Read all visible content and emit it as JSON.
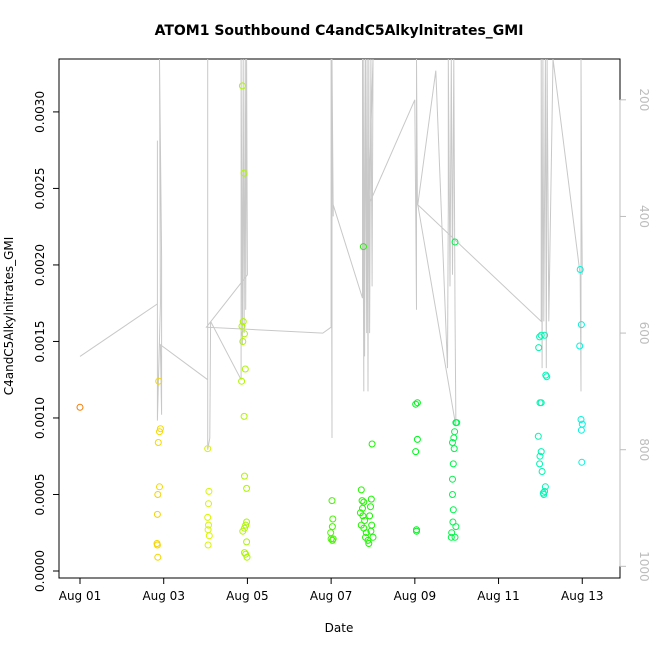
{
  "chart_data": {
    "type": "scatter",
    "title": "ATOM1 Southbound C4andC5Alkylnitrates_GMI",
    "xlabel": "Date",
    "ylabel": "C4andC5Alkylnitrates_GMI",
    "x_tick_labels": [
      "Aug 01",
      "Aug 03",
      "Aug 05",
      "Aug 07",
      "Aug 09",
      "Aug 11",
      "Aug 13"
    ],
    "y_tick_labels": [
      "0.0000",
      "0.0005",
      "0.0010",
      "0.0015",
      "0.0020",
      "0.0025",
      "0.0030"
    ],
    "y_ticks": [
      0,
      0.0005,
      0.001,
      0.0015,
      0.002,
      0.0025,
      0.003
    ],
    "ylim": [
      0,
      0.0033
    ],
    "xlim_days": [
      0,
      12.4
    ],
    "y2_tick_labels": [
      "200",
      "400",
      "600",
      "800",
      "1000"
    ],
    "y2_ticks": [
      200,
      400,
      600,
      800,
      1000
    ],
    "y2lim": [
      1020,
      130
    ],
    "y2_reversed": true,
    "series_points": [
      [
        0.0,
        0.00107
      ],
      [
        1.88,
        0.00124
      ],
      [
        1.92,
        0.00093
      ],
      [
        1.9,
        0.00091
      ],
      [
        1.87,
        0.00084
      ],
      [
        1.9,
        0.00055
      ],
      [
        1.86,
        0.0005
      ],
      [
        1.85,
        0.00037
      ],
      [
        1.84,
        0.00018
      ],
      [
        1.85,
        0.00017
      ],
      [
        1.86,
        9e-05
      ],
      [
        3.05,
        0.0008
      ],
      [
        3.08,
        0.00052
      ],
      [
        3.07,
        0.00044
      ],
      [
        3.05,
        0.00035
      ],
      [
        3.07,
        0.0003
      ],
      [
        3.06,
        0.00027
      ],
      [
        3.09,
        0.00023
      ],
      [
        3.06,
        0.00017
      ],
      [
        3.88,
        0.00317
      ],
      [
        3.92,
        0.0026
      ],
      [
        3.87,
        0.0016
      ],
      [
        3.9,
        0.00163
      ],
      [
        3.93,
        0.00155
      ],
      [
        3.89,
        0.0015
      ],
      [
        3.95,
        0.00132
      ],
      [
        3.86,
        0.00124
      ],
      [
        3.92,
        0.00101
      ],
      [
        3.93,
        0.00062
      ],
      [
        3.98,
        0.00054
      ],
      [
        3.98,
        0.00032
      ],
      [
        3.96,
        0.0003
      ],
      [
        3.93,
        0.00028
      ],
      [
        3.89,
        0.00026
      ],
      [
        3.98,
        0.00019
      ],
      [
        3.93,
        0.00012
      ],
      [
        3.96,
        0.00011
      ],
      [
        3.99,
        9e-05
      ],
      [
        6.02,
        0.00046
      ],
      [
        6.04,
        0.00034
      ],
      [
        6.03,
        0.00029
      ],
      [
        5.99,
        0.00025
      ],
      [
        6.0,
        0.00021
      ],
      [
        6.03,
        0.0002
      ],
      [
        6.05,
        0.00021
      ],
      [
        6.77,
        0.00212
      ],
      [
        6.72,
        0.00053
      ],
      [
        6.74,
        0.00046
      ],
      [
        6.78,
        0.00045
      ],
      [
        6.75,
        0.00041
      ],
      [
        6.7,
        0.00038
      ],
      [
        6.76,
        0.00036
      ],
      [
        6.8,
        0.00033
      ],
      [
        6.72,
        0.0003
      ],
      [
        6.78,
        0.00028
      ],
      [
        6.84,
        0.00025
      ],
      [
        6.82,
        0.00022
      ],
      [
        6.88,
        0.0002
      ],
      [
        6.9,
        0.00018
      ],
      [
        6.96,
        0.00047
      ],
      [
        6.98,
        0.00083
      ],
      [
        6.94,
        0.00042
      ],
      [
        6.92,
        0.00036
      ],
      [
        6.97,
        0.0003
      ],
      [
        6.95,
        0.00026
      ],
      [
        7.0,
        0.00022
      ],
      [
        8.02,
        0.00109
      ],
      [
        8.06,
        0.0011
      ],
      [
        8.06,
        0.00086
      ],
      [
        8.02,
        0.00078
      ],
      [
        8.04,
        0.00027
      ],
      [
        8.04,
        0.00026
      ],
      [
        8.96,
        0.00215
      ],
      [
        8.98,
        0.00097
      ],
      [
        9.0,
        0.00097
      ],
      [
        8.95,
        0.00091
      ],
      [
        8.93,
        0.00087
      ],
      [
        8.9,
        0.00084
      ],
      [
        8.94,
        0.0008
      ],
      [
        8.92,
        0.0007
      ],
      [
        8.9,
        0.0006
      ],
      [
        8.9,
        0.0005
      ],
      [
        8.92,
        0.0004
      ],
      [
        8.91,
        0.00032
      ],
      [
        8.98,
        0.00029
      ],
      [
        8.88,
        0.00025
      ],
      [
        8.87,
        0.00022
      ],
      [
        8.96,
        0.00022
      ],
      [
        10.98,
        0.00153
      ],
      [
        11.02,
        0.00154
      ],
      [
        11.1,
        0.00154
      ],
      [
        10.96,
        0.00146
      ],
      [
        11.13,
        0.00128
      ],
      [
        11.15,
        0.00127
      ],
      [
        10.99,
        0.0011
      ],
      [
        11.02,
        0.0011
      ],
      [
        10.95,
        0.00088
      ],
      [
        11.02,
        0.00078
      ],
      [
        10.99,
        0.00075
      ],
      [
        10.98,
        0.0007
      ],
      [
        11.04,
        0.00065
      ],
      [
        11.12,
        0.00055
      ],
      [
        11.1,
        0.00052
      ],
      [
        11.07,
        0.00051
      ],
      [
        11.08,
        0.0005
      ],
      [
        11.95,
        0.00197
      ],
      [
        11.98,
        0.00161
      ],
      [
        11.94,
        0.00147
      ],
      [
        11.97,
        0.00099
      ],
      [
        12.0,
        0.00096
      ],
      [
        11.98,
        0.00092
      ],
      [
        11.99,
        0.00071
      ]
    ],
    "pressure_track": [
      [
        0.0,
        640
      ],
      [
        1.85,
        550
      ],
      [
        1.85,
        270
      ],
      [
        1.85,
        750
      ],
      [
        1.92,
        550
      ],
      [
        1.9,
        130
      ],
      [
        1.95,
        470
      ],
      [
        1.95,
        740
      ],
      [
        1.92,
        620
      ],
      [
        3.05,
        680
      ],
      [
        3.05,
        130
      ],
      [
        3.05,
        800
      ],
      [
        3.1,
        780
      ],
      [
        3.12,
        580
      ],
      [
        3.85,
        680
      ],
      [
        3.85,
        130
      ],
      [
        3.88,
        620
      ],
      [
        3.9,
        130
      ],
      [
        3.92,
        600
      ],
      [
        3.95,
        130
      ],
      [
        3.96,
        560
      ],
      [
        3.98,
        130
      ],
      [
        4.0,
        500
      ],
      [
        3.02,
        590
      ],
      [
        5.8,
        600
      ],
      [
        6.0,
        590
      ],
      [
        6.0,
        130
      ],
      [
        6.02,
        780
      ],
      [
        6.02,
        130
      ],
      [
        6.05,
        400
      ],
      [
        6.05,
        380
      ],
      [
        6.75,
        540
      ],
      [
        6.75,
        130
      ],
      [
        6.78,
        700
      ],
      [
        6.78,
        130
      ],
      [
        6.8,
        640
      ],
      [
        6.82,
        130
      ],
      [
        6.85,
        600
      ],
      [
        6.86,
        130
      ],
      [
        6.88,
        700
      ],
      [
        6.9,
        130
      ],
      [
        6.92,
        600
      ],
      [
        6.95,
        130
      ],
      [
        6.98,
        520
      ],
      [
        7.0,
        130
      ],
      [
        6.9,
        380
      ],
      [
        8.0,
        200
      ],
      [
        8.04,
        560
      ],
      [
        8.04,
        130
      ],
      [
        8.06,
        380
      ],
      [
        8.07,
        380
      ],
      [
        8.5,
        150
      ],
      [
        8.78,
        660
      ],
      [
        8.8,
        380
      ],
      [
        8.8,
        130
      ],
      [
        8.84,
        520
      ],
      [
        8.87,
        130
      ],
      [
        8.9,
        500
      ],
      [
        8.93,
        130
      ],
      [
        8.96,
        560
      ],
      [
        8.98,
        760
      ],
      [
        8.07,
        380
      ],
      [
        11.02,
        580
      ],
      [
        11.02,
        130
      ],
      [
        11.04,
        660
      ],
      [
        11.06,
        130
      ],
      [
        11.08,
        580
      ],
      [
        11.12,
        130
      ],
      [
        11.14,
        660
      ],
      [
        11.16,
        130
      ],
      [
        11.2,
        580
      ],
      [
        11.3,
        130
      ],
      [
        11.95,
        500
      ],
      [
        11.97,
        700
      ],
      [
        11.97,
        130
      ],
      [
        11.99,
        400
      ],
      [
        12.0,
        500
      ]
    ],
    "colors": {
      "axis": "#000000",
      "pressure_line": "#c8c8c8",
      "y2_ticks": "#bdbdbd"
    },
    "grid": false
  }
}
